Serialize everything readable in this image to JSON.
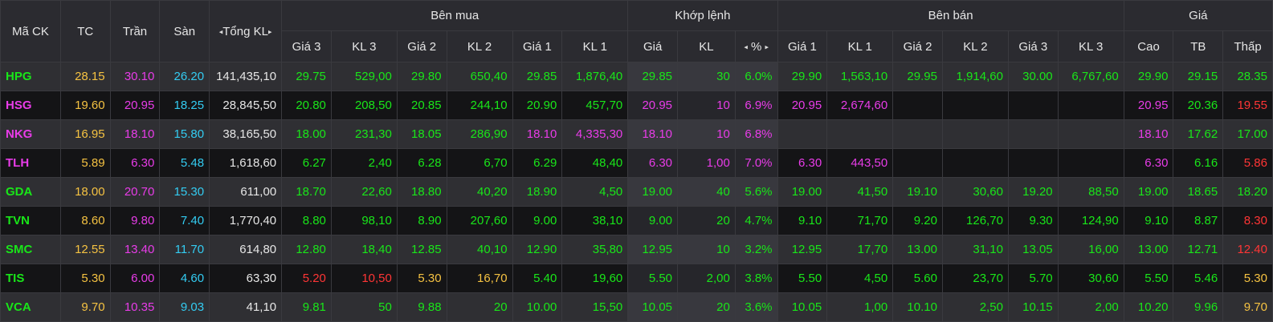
{
  "colors": {
    "green": "#19e619",
    "purple": "#e83ce8",
    "cyan": "#33ccf2",
    "yellow": "#f5c242",
    "red": "#ff3535",
    "white": "#e6e6e6"
  },
  "header": {
    "symbol": "Mã CK",
    "ref": "TC",
    "ceil": "Trần",
    "floor": "Sàn",
    "total_vol": "Tổng KL",
    "buy_group": "Bên mua",
    "match_group": "Khớp lệnh",
    "sell_group": "Bên bán",
    "price_group": "Giá",
    "buy_cols": [
      "Giá 3",
      "KL 3",
      "Giá 2",
      "KL 2",
      "Giá 1",
      "KL 1"
    ],
    "match_cols": [
      "Giá",
      "KL",
      "%"
    ],
    "sell_cols": [
      "Giá 1",
      "KL 1",
      "Giá 2",
      "KL 2",
      "Giá 3",
      "KL 3"
    ],
    "price_cols": [
      "Cao",
      "TB",
      "Thấp"
    ],
    "arrow_left": "◂",
    "arrow_right": "▸"
  },
  "rows": [
    {
      "c": [
        [
          "HPG",
          "g"
        ],
        [
          "28.15",
          "y"
        ],
        [
          "30.10",
          "p"
        ],
        [
          "26.20",
          "c"
        ],
        [
          "141,435,10",
          "w"
        ],
        [
          "29.75",
          "g"
        ],
        [
          "529,00",
          "g"
        ],
        [
          "29.80",
          "g"
        ],
        [
          "650,40",
          "g"
        ],
        [
          "29.85",
          "g"
        ],
        [
          "1,876,40",
          "g"
        ],
        [
          "29.85",
          "g"
        ],
        [
          "30",
          "g"
        ],
        [
          "6.0%",
          "g"
        ],
        [
          "29.90",
          "g"
        ],
        [
          "1,563,10",
          "g"
        ],
        [
          "29.95",
          "g"
        ],
        [
          "1,914,60",
          "g"
        ],
        [
          "30.00",
          "g"
        ],
        [
          "6,767,60",
          "g"
        ],
        [
          "29.90",
          "g"
        ],
        [
          "29.15",
          "g"
        ],
        [
          "28.35",
          "g"
        ]
      ]
    },
    {
      "c": [
        [
          "HSG",
          "p"
        ],
        [
          "19.60",
          "y"
        ],
        [
          "20.95",
          "p"
        ],
        [
          "18.25",
          "c"
        ],
        [
          "28,845,50",
          "w"
        ],
        [
          "20.80",
          "g"
        ],
        [
          "208,50",
          "g"
        ],
        [
          "20.85",
          "g"
        ],
        [
          "244,10",
          "g"
        ],
        [
          "20.90",
          "g"
        ],
        [
          "457,70",
          "g"
        ],
        [
          "20.95",
          "p"
        ],
        [
          "10",
          "p"
        ],
        [
          "6.9%",
          "p"
        ],
        [
          "20.95",
          "p"
        ],
        [
          "2,674,60",
          "p"
        ],
        [
          "",
          ""
        ],
        [
          "",
          ""
        ],
        [
          "",
          ""
        ],
        [
          "",
          ""
        ],
        [
          "20.95",
          "p"
        ],
        [
          "20.36",
          "g"
        ],
        [
          "19.55",
          "r"
        ]
      ]
    },
    {
      "c": [
        [
          "NKG",
          "p"
        ],
        [
          "16.95",
          "y"
        ],
        [
          "18.10",
          "p"
        ],
        [
          "15.80",
          "c"
        ],
        [
          "38,165,50",
          "w"
        ],
        [
          "18.00",
          "g"
        ],
        [
          "231,30",
          "g"
        ],
        [
          "18.05",
          "g"
        ],
        [
          "286,90",
          "g"
        ],
        [
          "18.10",
          "p"
        ],
        [
          "4,335,30",
          "p"
        ],
        [
          "18.10",
          "p"
        ],
        [
          "10",
          "p"
        ],
        [
          "6.8%",
          "p"
        ],
        [
          "",
          ""
        ],
        [
          "",
          ""
        ],
        [
          "",
          ""
        ],
        [
          "",
          ""
        ],
        [
          "",
          ""
        ],
        [
          "",
          ""
        ],
        [
          "18.10",
          "p"
        ],
        [
          "17.62",
          "g"
        ],
        [
          "17.00",
          "g"
        ]
      ]
    },
    {
      "c": [
        [
          "TLH",
          "p"
        ],
        [
          "5.89",
          "y"
        ],
        [
          "6.30",
          "p"
        ],
        [
          "5.48",
          "c"
        ],
        [
          "1,618,60",
          "w"
        ],
        [
          "6.27",
          "g"
        ],
        [
          "2,40",
          "g"
        ],
        [
          "6.28",
          "g"
        ],
        [
          "6,70",
          "g"
        ],
        [
          "6.29",
          "g"
        ],
        [
          "48,40",
          "g"
        ],
        [
          "6.30",
          "p"
        ],
        [
          "1,00",
          "p"
        ],
        [
          "7.0%",
          "p"
        ],
        [
          "6.30",
          "p"
        ],
        [
          "443,50",
          "p"
        ],
        [
          "",
          ""
        ],
        [
          "",
          ""
        ],
        [
          "",
          ""
        ],
        [
          "",
          ""
        ],
        [
          "6.30",
          "p"
        ],
        [
          "6.16",
          "g"
        ],
        [
          "5.86",
          "r"
        ]
      ]
    },
    {
      "c": [
        [
          "GDA",
          "g"
        ],
        [
          "18.00",
          "y"
        ],
        [
          "20.70",
          "p"
        ],
        [
          "15.30",
          "c"
        ],
        [
          "611,00",
          "w"
        ],
        [
          "18.70",
          "g"
        ],
        [
          "22,60",
          "g"
        ],
        [
          "18.80",
          "g"
        ],
        [
          "40,20",
          "g"
        ],
        [
          "18.90",
          "g"
        ],
        [
          "4,50",
          "g"
        ],
        [
          "19.00",
          "g"
        ],
        [
          "40",
          "g"
        ],
        [
          "5.6%",
          "g"
        ],
        [
          "19.00",
          "g"
        ],
        [
          "41,50",
          "g"
        ],
        [
          "19.10",
          "g"
        ],
        [
          "30,60",
          "g"
        ],
        [
          "19.20",
          "g"
        ],
        [
          "88,50",
          "g"
        ],
        [
          "19.00",
          "g"
        ],
        [
          "18.65",
          "g"
        ],
        [
          "18.20",
          "g"
        ]
      ]
    },
    {
      "c": [
        [
          "TVN",
          "g"
        ],
        [
          "8.60",
          "y"
        ],
        [
          "9.80",
          "p"
        ],
        [
          "7.40",
          "c"
        ],
        [
          "1,770,40",
          "w"
        ],
        [
          "8.80",
          "g"
        ],
        [
          "98,10",
          "g"
        ],
        [
          "8.90",
          "g"
        ],
        [
          "207,60",
          "g"
        ],
        [
          "9.00",
          "g"
        ],
        [
          "38,10",
          "g"
        ],
        [
          "9.00",
          "g"
        ],
        [
          "20",
          "g"
        ],
        [
          "4.7%",
          "g"
        ],
        [
          "9.10",
          "g"
        ],
        [
          "71,70",
          "g"
        ],
        [
          "9.20",
          "g"
        ],
        [
          "126,70",
          "g"
        ],
        [
          "9.30",
          "g"
        ],
        [
          "124,90",
          "g"
        ],
        [
          "9.10",
          "g"
        ],
        [
          "8.87",
          "g"
        ],
        [
          "8.30",
          "r"
        ]
      ]
    },
    {
      "c": [
        [
          "SMC",
          "g"
        ],
        [
          "12.55",
          "y"
        ],
        [
          "13.40",
          "p"
        ],
        [
          "11.70",
          "c"
        ],
        [
          "614,80",
          "w"
        ],
        [
          "12.80",
          "g"
        ],
        [
          "18,40",
          "g"
        ],
        [
          "12.85",
          "g"
        ],
        [
          "40,10",
          "g"
        ],
        [
          "12.90",
          "g"
        ],
        [
          "35,80",
          "g"
        ],
        [
          "12.95",
          "g"
        ],
        [
          "10",
          "g"
        ],
        [
          "3.2%",
          "g"
        ],
        [
          "12.95",
          "g"
        ],
        [
          "17,70",
          "g"
        ],
        [
          "13.00",
          "g"
        ],
        [
          "31,10",
          "g"
        ],
        [
          "13.05",
          "g"
        ],
        [
          "16,00",
          "g"
        ],
        [
          "13.00",
          "g"
        ],
        [
          "12.71",
          "g"
        ],
        [
          "12.40",
          "r"
        ]
      ]
    },
    {
      "c": [
        [
          "TIS",
          "g"
        ],
        [
          "5.30",
          "y"
        ],
        [
          "6.00",
          "p"
        ],
        [
          "4.60",
          "c"
        ],
        [
          "63,30",
          "w"
        ],
        [
          "5.20",
          "r"
        ],
        [
          "10,50",
          "r"
        ],
        [
          "5.30",
          "y"
        ],
        [
          "16,70",
          "y"
        ],
        [
          "5.40",
          "g"
        ],
        [
          "19,60",
          "g"
        ],
        [
          "5.50",
          "g"
        ],
        [
          "2,00",
          "g"
        ],
        [
          "3.8%",
          "g"
        ],
        [
          "5.50",
          "g"
        ],
        [
          "4,50",
          "g"
        ],
        [
          "5.60",
          "g"
        ],
        [
          "23,70",
          "g"
        ],
        [
          "5.70",
          "g"
        ],
        [
          "30,60",
          "g"
        ],
        [
          "5.50",
          "g"
        ],
        [
          "5.46",
          "g"
        ],
        [
          "5.30",
          "y"
        ]
      ]
    },
    {
      "c": [
        [
          "VCA",
          "g"
        ],
        [
          "9.70",
          "y"
        ],
        [
          "10.35",
          "p"
        ],
        [
          "9.03",
          "c"
        ],
        [
          "41,10",
          "w"
        ],
        [
          "9.81",
          "g"
        ],
        [
          "50",
          "g"
        ],
        [
          "9.88",
          "g"
        ],
        [
          "20",
          "g"
        ],
        [
          "10.00",
          "g"
        ],
        [
          "15,50",
          "g"
        ],
        [
          "10.05",
          "g"
        ],
        [
          "20",
          "g"
        ],
        [
          "3.6%",
          "g"
        ],
        [
          "10.05",
          "g"
        ],
        [
          "1,00",
          "g"
        ],
        [
          "10.10",
          "g"
        ],
        [
          "2,50",
          "g"
        ],
        [
          "10.15",
          "g"
        ],
        [
          "2,00",
          "g"
        ],
        [
          "10.20",
          "g"
        ],
        [
          "9.96",
          "g"
        ],
        [
          "9.70",
          "y"
        ]
      ]
    }
  ]
}
